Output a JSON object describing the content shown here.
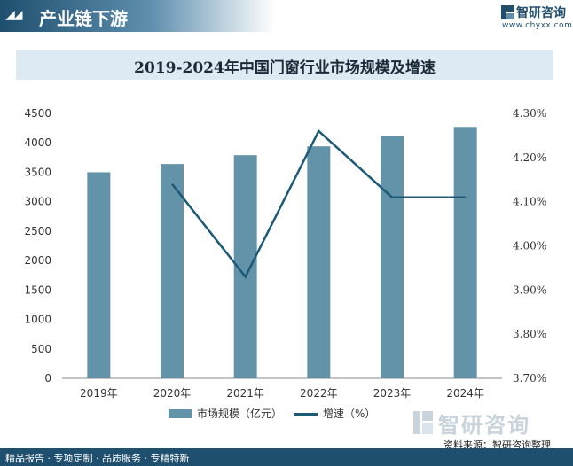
{
  "header": {
    "title": "产业链下游",
    "brand_name": "智研咨询",
    "brand_url": "www.chyxx.com"
  },
  "colors": {
    "header_dark": "#1f4f6e",
    "bar": "#6393a8",
    "line": "#1c5a78",
    "title_bar": "#dde9f3"
  },
  "chart_data": {
    "type": "bar+line",
    "title": "2019-2024年中国门窗行业市场规模及增速",
    "categories": [
      "2019年",
      "2020年",
      "2021年",
      "2022年",
      "2023年",
      "2024年"
    ],
    "series": [
      {
        "name": "市场规模（亿元）",
        "type": "bar",
        "axis": "left",
        "values": [
          3500,
          3640,
          3790,
          3940,
          4110,
          4270
        ]
      },
      {
        "name": "增速（%）",
        "type": "line",
        "axis": "right",
        "values": [
          null,
          4.14,
          3.93,
          4.26,
          4.11,
          4.11
        ]
      }
    ],
    "left_axis": {
      "ticks": [
        "0",
        "500",
        "1000",
        "1500",
        "2000",
        "2500",
        "3000",
        "3500",
        "4000",
        "4500"
      ],
      "ylim": [
        0,
        4500
      ]
    },
    "right_axis": {
      "ticks": [
        "3.70%",
        "3.80%",
        "3.90%",
        "4.00%",
        "4.10%",
        "4.20%",
        "4.30%"
      ],
      "ylim": [
        3.7,
        4.3
      ]
    },
    "grid": false,
    "legend_position": "bottom"
  },
  "footer": {
    "watermark": "智研咨询",
    "source": "资料来源：智研咨询整理",
    "tagline": "精品报告 · 专项定制 · 品质服务 · 专精特新"
  }
}
